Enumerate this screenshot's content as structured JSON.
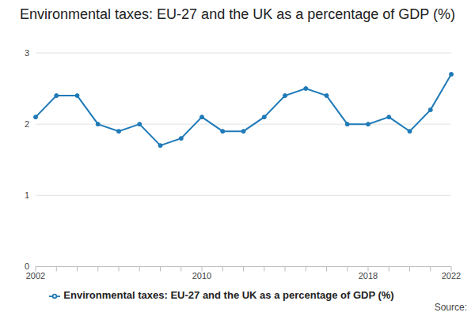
{
  "chart_data": {
    "type": "line",
    "title": "Environmental taxes: EU-27 and the UK as a percentage of GDP (%)",
    "source": "Source:",
    "categories": [
      "2002",
      null,
      null,
      null,
      null,
      null,
      null,
      null,
      "2010",
      null,
      null,
      null,
      null,
      null,
      null,
      null,
      "2018",
      null,
      null,
      null,
      "2022"
    ],
    "series": [
      {
        "name": "Environmental taxes: EU-27 and the UK as a percentage of GDP (%)",
        "color": "#1f7ab8",
        "marker": "circle",
        "values": [
          2.1,
          2.4,
          2.4,
          2.0,
          1.9,
          2.0,
          1.7,
          1.8,
          2.1,
          1.9,
          1.9,
          2.1,
          2.4,
          2.5,
          2.4,
          2.0,
          2.0,
          2.1,
          1.9,
          2.2,
          2.7
        ]
      }
    ],
    "ylim": [
      0,
      3
    ],
    "yticks": [
      0,
      1,
      2,
      3
    ],
    "grid": true,
    "legend": "bottom"
  }
}
